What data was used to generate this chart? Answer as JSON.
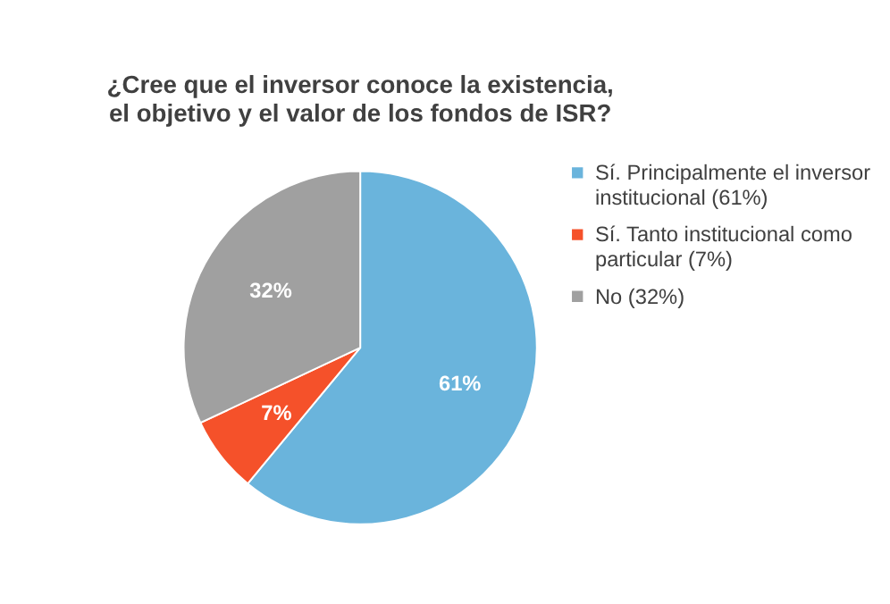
{
  "chart_data": {
    "type": "pie",
    "title": "¿Cree que el inversor conoce la existencia, el objetivo y el valor de los fondos de ISR?",
    "categories": [
      "Sí. Principalmente el inversor institucional (61%)",
      "Sí. Tanto institucional como particular (7%)",
      "No (32%)"
    ],
    "values": [
      61,
      7,
      32
    ],
    "colors": [
      "#6ab4dc",
      "#f5512a",
      "#a0a0a0"
    ],
    "value_labels": [
      "61%",
      "7%",
      "32%"
    ],
    "legend": "right"
  }
}
